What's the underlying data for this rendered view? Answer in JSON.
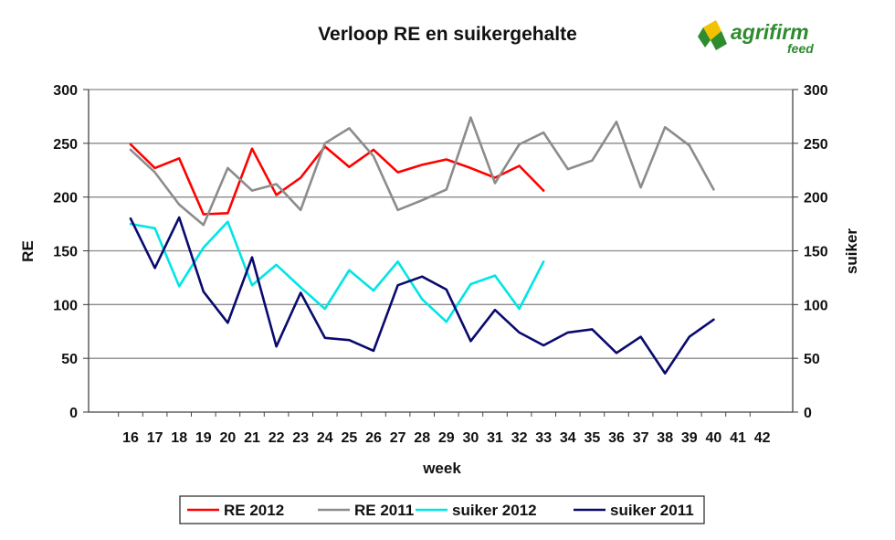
{
  "logo": {
    "main": "agrifirm",
    "sub": "feed"
  },
  "chart_data": {
    "type": "line",
    "title": "Verloop RE en suikergehalte",
    "xlabel": "week",
    "ylabel_left": "RE",
    "ylabel_right": "suiker",
    "categories": [
      "16",
      "17",
      "18",
      "19",
      "20",
      "21",
      "22",
      "23",
      "24",
      "25",
      "26",
      "27",
      "28",
      "29",
      "30",
      "31",
      "32",
      "33",
      "34",
      "35",
      "36",
      "37",
      "38",
      "39",
      "40",
      "41",
      "42"
    ],
    "ylim_left": [
      0,
      300
    ],
    "ylim_right": [
      0,
      300
    ],
    "yticks_left": [
      0,
      50,
      100,
      150,
      200,
      250,
      300
    ],
    "yticks_right": [
      0,
      50,
      100,
      150,
      200,
      250,
      300
    ],
    "grid": true,
    "legend_position": "bottom",
    "series": [
      {
        "name": "RE 2012",
        "color": "#ff0000",
        "axis": "left",
        "values": [
          249,
          227,
          236,
          184,
          185,
          245,
          202,
          218,
          247,
          228,
          244,
          223,
          230,
          235,
          227,
          218,
          229,
          206,
          null,
          null,
          null,
          null,
          null,
          null,
          null,
          null,
          null
        ]
      },
      {
        "name": "RE 2011",
        "color": "#8c8c8c",
        "axis": "left",
        "values": [
          244,
          223,
          193,
          174,
          227,
          206,
          212,
          188,
          250,
          264,
          238,
          188,
          197,
          207,
          274,
          213,
          249,
          260,
          226,
          234,
          270,
          209,
          265,
          248,
          207,
          null,
          null
        ]
      },
      {
        "name": "suiker 2012",
        "color": "#00e5e5",
        "axis": "right",
        "values": [
          175,
          171,
          117,
          153,
          177,
          118,
          137,
          116,
          96,
          132,
          113,
          140,
          105,
          84,
          119,
          127,
          96,
          140,
          null,
          null,
          null,
          null,
          null,
          null,
          null,
          null,
          null
        ]
      },
      {
        "name": "suiker 2011",
        "color": "#0a0a6e",
        "axis": "right",
        "values": [
          180,
          134,
          181,
          112,
          83,
          144,
          61,
          111,
          69,
          67,
          57,
          118,
          126,
          114,
          66,
          95,
          74,
          62,
          74,
          77,
          55,
          70,
          36,
          70,
          86,
          null,
          null
        ]
      }
    ]
  }
}
